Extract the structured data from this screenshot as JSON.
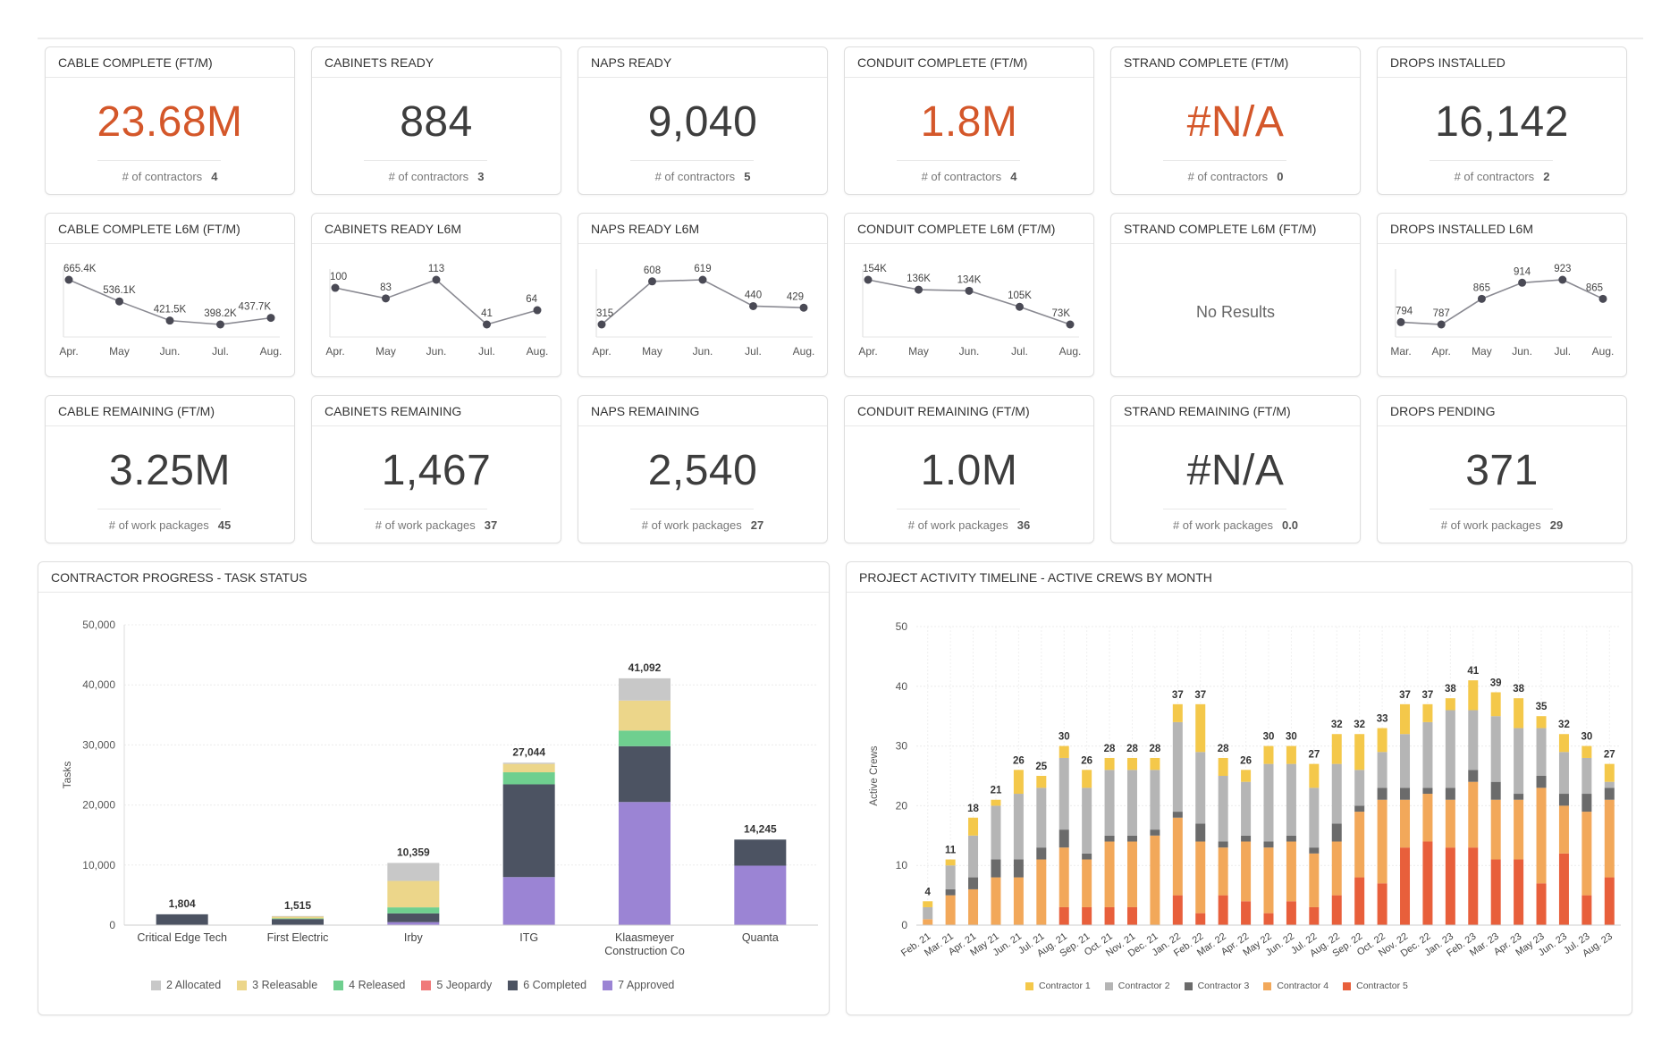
{
  "colors": {
    "orange_value": "#d4572a",
    "dark_value": "#3d3d3d",
    "line": "#4a4a55"
  },
  "kpi_row1": [
    {
      "title": "CABLE COMPLETE (FT/M)",
      "value": "23.68M",
      "sub_label": "# of contractors",
      "sub_value": "4",
      "accent": true
    },
    {
      "title": "CABINETS READY",
      "value": "884",
      "sub_label": "# of contractors",
      "sub_value": "3",
      "accent": false
    },
    {
      "title": "NAPS READY",
      "value": "9,040",
      "sub_label": "# of contractors",
      "sub_value": "5",
      "accent": false
    },
    {
      "title": "CONDUIT COMPLETE (FT/M)",
      "value": "1.8M",
      "sub_label": "# of contractors",
      "sub_value": "4",
      "accent": true
    },
    {
      "title": "STRAND COMPLETE (FT/M)",
      "value": "#N/A",
      "sub_label": "# of contractors",
      "sub_value": "0",
      "accent": true
    },
    {
      "title": "DROPS INSTALLED",
      "value": "16,142",
      "sub_label": "# of contractors",
      "sub_value": "2",
      "accent": false
    }
  ],
  "sparklines": [
    {
      "title": "CABLE COMPLETE L6M (FT/M)",
      "months": [
        "Apr.",
        "May",
        "Jun.",
        "Jul.",
        "Aug."
      ],
      "values": [
        665.4,
        536.1,
        421.5,
        398.2,
        437.7
      ],
      "labels": [
        "665.4K",
        "536.1K",
        "421.5K",
        "398.2K",
        "437.7K"
      ]
    },
    {
      "title": "CABINETS READY L6M",
      "months": [
        "Apr.",
        "May",
        "Jun.",
        "Jul.",
        "Aug."
      ],
      "values": [
        100,
        83,
        113,
        41,
        64
      ],
      "labels": [
        "100",
        "83",
        "113",
        "41",
        "64"
      ]
    },
    {
      "title": "NAPS READY L6M",
      "months": [
        "Apr.",
        "May",
        "Jun.",
        "Jul.",
        "Aug."
      ],
      "values": [
        315,
        608,
        619,
        440,
        429
      ],
      "labels": [
        "315",
        "608",
        "619",
        "440",
        "429"
      ]
    },
    {
      "title": "CONDUIT COMPLETE L6M (FT/M)",
      "months": [
        "Apr.",
        "May",
        "Jun.",
        "Jul.",
        "Aug."
      ],
      "values": [
        154,
        136,
        134,
        105,
        73
      ],
      "labels": [
        "154K",
        "136K",
        "134K",
        "105K",
        "73K"
      ]
    },
    {
      "title": "STRAND COMPLETE L6M (FT/M)",
      "months": [],
      "values": [],
      "labels": [],
      "empty_text": "No Results"
    },
    {
      "title": "DROPS INSTALLED L6M",
      "months": [
        "Mar.",
        "Apr.",
        "May",
        "Jun.",
        "Jul.",
        "Aug."
      ],
      "values": [
        794,
        787,
        865,
        914,
        923,
        865
      ],
      "labels": [
        "794",
        "787",
        "865",
        "914",
        "923",
        "865"
      ]
    }
  ],
  "kpi_row3": [
    {
      "title": "CABLE REMAINING (FT/M)",
      "value": "3.25M",
      "sub_label": "# of work packages",
      "sub_value": "45"
    },
    {
      "title": "CABINETS REMAINING",
      "value": "1,467",
      "sub_label": "# of work packages",
      "sub_value": "37"
    },
    {
      "title": "NAPS REMAINING",
      "value": "2,540",
      "sub_label": "# of work packages",
      "sub_value": "27"
    },
    {
      "title": "CONDUIT REMAINING (FT/M)",
      "value": "1.0M",
      "sub_label": "# of work packages",
      "sub_value": "36"
    },
    {
      "title": "STRAND REMAINING (FT/M)",
      "value": "#N/A",
      "sub_label": "# of work packages",
      "sub_value": "0.0"
    },
    {
      "title": "DROPS PENDING",
      "value": "371",
      "sub_label": "# of work packages",
      "sub_value": "29"
    }
  ],
  "chart_data": [
    {
      "type": "bar",
      "stacked": true,
      "title": "CONTRACTOR PROGRESS - TASK STATUS",
      "ylabel": "Tasks",
      "xlabel": "",
      "ylim": [
        0,
        50000
      ],
      "yticks": [
        "0",
        "10,000",
        "20,000",
        "30,000",
        "40,000",
        "50,000"
      ],
      "categories": [
        "Critical Edge Tech",
        "First Electric",
        "Irby",
        "ITG",
        "Klaasmeyer Construction Co",
        "Quanta"
      ],
      "totals_labels": [
        "1,804",
        "1,515",
        "10,359",
        "27,044",
        "41,092",
        "14,245"
      ],
      "legend_position": "bottom",
      "series": [
        {
          "name": "2 Allocated",
          "color": "#c8c8c8",
          "values": [
            0,
            100,
            3000,
            200,
            3700,
            0
          ]
        },
        {
          "name": "3 Releasable",
          "color": "#ecd68a",
          "values": [
            0,
            300,
            4400,
            1400,
            5000,
            0
          ]
        },
        {
          "name": "4 Released",
          "color": "#6fcf8f",
          "values": [
            0,
            100,
            1000,
            2000,
            2600,
            0
          ]
        },
        {
          "name": "5 Jeopardy",
          "color": "#f07a7a",
          "values": [
            0,
            0,
            0,
            0,
            0,
            0
          ]
        },
        {
          "name": "6 Completed",
          "color": "#4c5362",
          "values": [
            1804,
            1015,
            1459,
            15444,
            9292,
            4345
          ]
        },
        {
          "name": "7 Approved",
          "color": "#9b84d4",
          "values": [
            0,
            0,
            500,
            8000,
            20500,
            9900
          ]
        }
      ]
    },
    {
      "type": "bar",
      "stacked": true,
      "title": "PROJECT ACTIVITY TIMELINE - ACTIVE CREWS BY MONTH",
      "ylabel": "Active Crews",
      "xlabel": "",
      "ylim": [
        0,
        50
      ],
      "yticks": [
        "0",
        "10",
        "20",
        "30",
        "40",
        "50"
      ],
      "categories": [
        "Feb. 21",
        "Mar. 21",
        "Apr. 21",
        "May 21",
        "Jun. 21",
        "Jul. 21",
        "Aug. 21",
        "Sep. 21",
        "Oct. 21",
        "Nov. 21",
        "Dec. 21",
        "Jan. 22",
        "Feb. 22",
        "Mar. 22",
        "Apr. 22",
        "May 22",
        "Jun. 22",
        "Jul. 22",
        "Aug. 22",
        "Sep. 22",
        "Oct. 22",
        "Nov. 22",
        "Dec. 22",
        "Jan. 23",
        "Feb. 23",
        "Mar. 23",
        "Apr. 23",
        "May 23",
        "Jun. 23",
        "Jul. 23",
        "Aug. 23"
      ],
      "visible_x_labels": [
        "Feb. 21",
        "Mar. 21",
        "Apr. 21",
        "May 21",
        "Jun. 21",
        "Jul. 21",
        "Aug. 21",
        "Sep. 21",
        "Oct. 21",
        "Nov. 21",
        "Dec. 21",
        "Jan. 22",
        "Feb. 22",
        "Mar. 22",
        "Apr. 22",
        "May 22",
        "Jun. 22",
        "Jul. 22",
        "Aug. 22",
        "Sep. 22",
        "Oct. 22",
        "Nov. 22",
        "Dec. 22",
        "Jan. 23",
        "Feb. 23",
        "Mar. 23",
        "Apr. 23",
        "May 23",
        "Jun. 23",
        "Jul. 23",
        "Aug. 23"
      ],
      "totals": [
        4,
        11,
        18,
        21,
        26,
        25,
        30,
        26,
        28,
        28,
        28,
        37,
        37,
        28,
        26,
        30,
        30,
        27,
        32,
        32,
        33,
        37,
        37,
        38,
        41,
        39,
        38,
        35,
        32,
        30,
        27
      ],
      "legend_position": "bottom",
      "series": [
        {
          "name": "Contractor 1",
          "color": "#f4c84a",
          "values": [
            1,
            1,
            3,
            1,
            4,
            2,
            2,
            3,
            2,
            2,
            2,
            3,
            8,
            3,
            2,
            3,
            3,
            4,
            5,
            6,
            4,
            5,
            3,
            2,
            5,
            4,
            5,
            2,
            3,
            2,
            3
          ]
        },
        {
          "name": "Contractor 2",
          "color": "#b5b5b5",
          "values": [
            2,
            4,
            7,
            9,
            11,
            10,
            12,
            11,
            11,
            11,
            10,
            15,
            12,
            11,
            9,
            13,
            12,
            10,
            10,
            6,
            6,
            9,
            11,
            13,
            10,
            11,
            11,
            8,
            7,
            6,
            1
          ]
        },
        {
          "name": "Contractor 3",
          "color": "#6b6b6b",
          "values": [
            0,
            1,
            2,
            3,
            3,
            2,
            3,
            1,
            1,
            1,
            1,
            1,
            3,
            1,
            1,
            1,
            1,
            1,
            3,
            1,
            2,
            2,
            1,
            2,
            2,
            3,
            1,
            2,
            2,
            3,
            2
          ]
        },
        {
          "name": "Contractor 4",
          "color": "#f2a85a",
          "values": [
            1,
            5,
            6,
            8,
            8,
            11,
            10,
            8,
            11,
            11,
            15,
            13,
            12,
            8,
            10,
            11,
            10,
            9,
            9,
            11,
            14,
            8,
            8,
            8,
            11,
            10,
            10,
            16,
            8,
            14,
            13
          ]
        },
        {
          "name": "Contractor 5",
          "color": "#e85f3b",
          "values": [
            0,
            0,
            0,
            0,
            0,
            0,
            3,
            3,
            3,
            3,
            0,
            5,
            2,
            5,
            4,
            2,
            4,
            3,
            5,
            8,
            7,
            13,
            14,
            13,
            13,
            11,
            11,
            7,
            12,
            5,
            8
          ]
        }
      ]
    }
  ]
}
